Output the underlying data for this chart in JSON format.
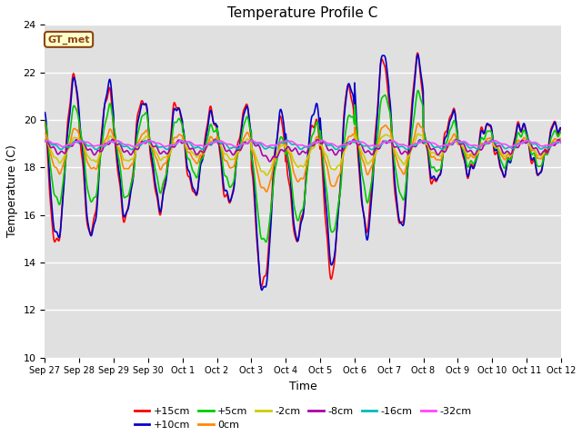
{
  "title": "Temperature Profile C",
  "xlabel": "Time",
  "ylabel": "Temperature (C)",
  "ylim": [
    10,
    24
  ],
  "xlim": [
    0,
    360
  ],
  "annotation": "GT_met",
  "series": [
    {
      "label": "+15cm",
      "color": "#ff0000"
    },
    {
      "label": "+10cm",
      "color": "#0000cc"
    },
    {
      "label": "+5cm",
      "color": "#00cc00"
    },
    {
      "label": "0cm",
      "color": "#ff8800"
    },
    {
      "label": "-2cm",
      "color": "#cccc00"
    },
    {
      "label": "-8cm",
      "color": "#aa00aa"
    },
    {
      "label": "-16cm",
      "color": "#00bbbb"
    },
    {
      "label": "-32cm",
      "color": "#ff44ff"
    }
  ],
  "xtick_labels": [
    "Sep 27",
    "Sep 28",
    "Sep 29",
    "Sep 30",
    "Oct 1",
    "Oct 2",
    "Oct 3",
    "Oct 4",
    "Oct 5",
    "Oct 6",
    "Oct 7",
    "Oct 8",
    "Oct 9",
    "Oct 10",
    "Oct 11",
    "Oct 12"
  ],
  "xtick_positions": [
    0,
    24,
    48,
    72,
    96,
    120,
    144,
    168,
    192,
    216,
    240,
    264,
    288,
    312,
    336,
    360
  ],
  "background_color": "#e0e0e0",
  "grid_color": "#ffffff",
  "fig_facecolor": "#ffffff",
  "linewidth": 1.2
}
